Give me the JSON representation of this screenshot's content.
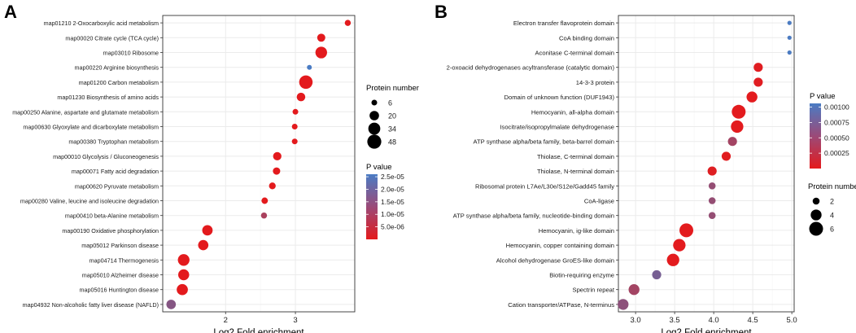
{
  "chart_data": [
    {
      "type": "scatter",
      "panel_label": "A",
      "xlabel": "Log2 Fold enrichment",
      "ylabel": "",
      "xlim": [
        1.1,
        3.85
      ],
      "xticks": [
        2,
        3
      ],
      "categories": [
        "map01210 2-Oxocarboxylic acid metabolism",
        "map00020 Citrate cycle (TCA cycle)",
        "map03010 Ribosome",
        "map00220 Arginine biosynthesis",
        "map01200 Carbon metabolism",
        "map01230 Biosynthesis of amino acids",
        "map00250 Alanine, aspartate and glutamate metabolism",
        "map00630 Glyoxylate and dicarboxylate metabolism",
        "map00380 Tryptophan metabolism",
        "map00010 Glycolysis / Gluconeogenesis",
        "map00071 Fatty acid degradation",
        "map00620 Pyruvate metabolism",
        "map00280 Valine, leucine and isoleucine degradation",
        "map00410 beta-Alanine metabolism",
        "map00190 Oxidative phosphorylation",
        "map05012 Parkinson disease",
        "map04714 Thermogenesis",
        "map05010 Alzheimer disease",
        "map05016 Huntington disease",
        "map04932 Non-alcoholic fatty liver disease (NAFLD)"
      ],
      "fold_enrichment": [
        3.75,
        3.37,
        3.37,
        3.2,
        3.15,
        3.08,
        3.0,
        2.99,
        2.99,
        2.74,
        2.73,
        2.67,
        2.56,
        2.55,
        1.74,
        1.68,
        1.4,
        1.4,
        1.38,
        1.22
      ],
      "protein_number": [
        7,
        14,
        32,
        4,
        44,
        16,
        6,
        6,
        6,
        15,
        11,
        9,
        8,
        7,
        25,
        24,
        32,
        28,
        29,
        20
      ],
      "p_value": [
        1e-07,
        1e-07,
        1e-07,
        2.6e-05,
        1e-07,
        1e-07,
        1e-07,
        1e-07,
        1e-07,
        1e-07,
        1e-07,
        1e-07,
        1e-07,
        1e-05,
        1e-07,
        1e-07,
        1e-07,
        1e-07,
        1e-07,
        1.6e-05
      ],
      "size_legend": {
        "title": "Protein number",
        "values": [
          6,
          20,
          34,
          48
        ],
        "labels": [
          "6",
          "20",
          "34",
          "48"
        ]
      },
      "color_legend": {
        "title": "P value",
        "min": 0,
        "max": 2.6e-05,
        "ticks": [
          2.5e-05,
          2e-05,
          1.5e-05,
          1e-05,
          5e-06
        ],
        "labels": [
          "2.5e-05",
          "2.0e-05",
          "1.5e-05",
          "1.0e-05",
          "5.0e-06"
        ],
        "low_color": "#e41a1c",
        "high_color": "#4a7cc4"
      },
      "grid": true
    },
    {
      "type": "scatter",
      "panel_label": "B",
      "xlabel": "Log2 Fold enrichment",
      "ylabel": "",
      "xlim": [
        2.78,
        5.03
      ],
      "xticks": [
        3.0,
        3.5,
        4.0,
        4.5,
        5.0
      ],
      "xticklabels": [
        "3.0",
        "3.5",
        "4.0",
        "4.5",
        "5.0"
      ],
      "categories": [
        "Electron transfer flavoprotein domain",
        "CoA binding domain",
        "Aconitase C-terminal domain",
        "2-oxoacid dehydrogenases acyltransferase (catalytic domain)",
        "14-3-3 protein",
        "Domain of unknown function (DUF1943)",
        "Hemocyanin, all-alpha domain",
        "Isocitrate/isopropylmalate dehydrogenase",
        "ATP synthase alpha/beta family, beta-barrel domain",
        "Thiolase, C-terminal domain",
        "Thiolase, N-terminal domain",
        "Ribosomal protein L7Ae/L30e/S12e/Gadd45 family",
        "CoA-ligase",
        "ATP synthase alpha/beta family, nucleotide-binding domain",
        "Hemocyanin, ig-like domain",
        "Hemocyanin, copper containing domain",
        "Alcohol dehydrogenase GroES-like domain",
        "Biotin-requiring enzyme",
        "Spectrin repeat",
        "Cation transporter/ATPase, N-terminus"
      ],
      "fold_enrichment": [
        4.97,
        4.97,
        4.97,
        4.57,
        4.57,
        4.49,
        4.32,
        4.3,
        4.24,
        4.16,
        3.98,
        3.98,
        3.98,
        3.98,
        3.65,
        3.56,
        3.48,
        3.27,
        2.98,
        2.84
      ],
      "protein_number": [
        1,
        1,
        1,
        3,
        3,
        4,
        6,
        5,
        3,
        3,
        3,
        2,
        2,
        2,
        6,
        5,
        5,
        3,
        4,
        4
      ],
      "p_value": [
        0.00105,
        0.00105,
        0.00105,
        3e-05,
        3e-05,
        1e-05,
        1e-05,
        1e-05,
        0.00045,
        2e-05,
        4e-05,
        0.00055,
        0.00055,
        0.00055,
        1e-05,
        1e-05,
        1e-05,
        0.00075,
        0.00045,
        0.0006
      ],
      "size_legend": {
        "title": "Protein number",
        "values": [
          2,
          4,
          6
        ],
        "labels": [
          "2",
          "4",
          "6"
        ]
      },
      "color_legend": {
        "title": "P value",
        "min": 0,
        "max": 0.00106,
        "ticks": [
          0.001,
          0.00075,
          0.0005,
          0.00025
        ],
        "labels": [
          "0.00100",
          "0.00075",
          "0.00050",
          "0.00025"
        ],
        "low_color": "#e41a1c",
        "high_color": "#4a7cc4"
      },
      "grid": true
    }
  ]
}
